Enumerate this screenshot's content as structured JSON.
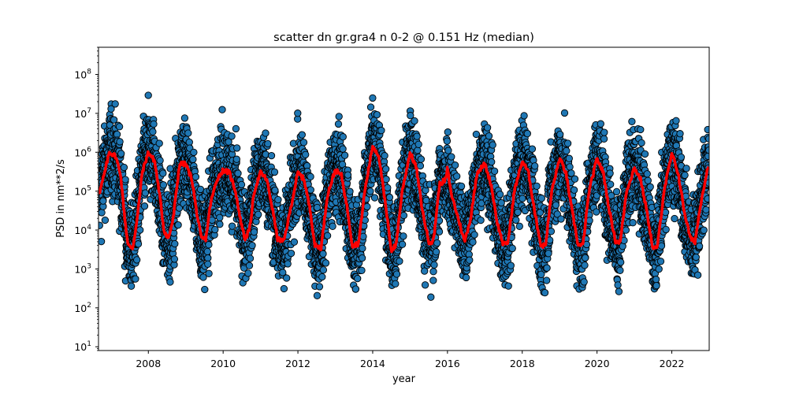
{
  "chart_data": {
    "type": "scatter",
    "title": "scatter dn gr.gra4 n 0-2 @ 0.151 Hz (median)",
    "xlabel": "year",
    "ylabel": "PSD in nm**2/s",
    "xlim": [
      "2006-09-01",
      "2023-01-01"
    ],
    "ylim": [
      8,
      500000000
    ],
    "yscale": "log",
    "grid": false,
    "x_ticks": [
      "2008",
      "2010",
      "2012",
      "2014",
      "2016",
      "2018",
      "2020",
      "2022"
    ],
    "y_ticks": [
      {
        "value": 10,
        "base": "10",
        "exp": "1"
      },
      {
        "value": 100,
        "base": "10",
        "exp": "2"
      },
      {
        "value": 1000,
        "base": "10",
        "exp": "3"
      },
      {
        "value": 10000,
        "base": "10",
        "exp": "4"
      },
      {
        "value": 100000,
        "base": "10",
        "exp": "5"
      },
      {
        "value": 1000000,
        "base": "10",
        "exp": "6"
      },
      {
        "value": 10000000,
        "base": "10",
        "exp": "7"
      },
      {
        "value": 100000000,
        "base": "10",
        "exp": "8"
      }
    ],
    "scatter_color": "#1f77b4",
    "scatter_edge_color": "#000000",
    "median_color": "#ff0000",
    "series": [
      {
        "kind": "median-line",
        "points": [
          [
            "2006-09-15",
            100000
          ],
          [
            "2006-11-01",
            300000
          ],
          [
            "2006-12-15",
            1000000
          ],
          [
            "2007-02-15",
            800000
          ],
          [
            "2007-04-01",
            300000
          ],
          [
            "2007-05-15",
            20000
          ],
          [
            "2007-06-15",
            4000
          ],
          [
            "2007-08-01",
            3500
          ],
          [
            "2007-09-15",
            20000
          ],
          [
            "2007-11-01",
            300000
          ],
          [
            "2008-01-01",
            1000000
          ],
          [
            "2008-03-01",
            600000
          ],
          [
            "2008-04-15",
            100000
          ],
          [
            "2008-06-01",
            10000
          ],
          [
            "2008-07-15",
            6000
          ],
          [
            "2008-09-01",
            20000
          ],
          [
            "2008-11-01",
            500000
          ],
          [
            "2009-01-01",
            500000
          ],
          [
            "2009-03-01",
            200000
          ],
          [
            "2009-04-15",
            30000
          ],
          [
            "2009-06-01",
            6000
          ],
          [
            "2009-07-15",
            6000
          ],
          [
            "2009-09-01",
            50000
          ],
          [
            "2009-11-01",
            200000
          ],
          [
            "2010-01-01",
            350000
          ],
          [
            "2010-03-01",
            300000
          ],
          [
            "2010-05-01",
            100000
          ],
          [
            "2010-06-15",
            20000
          ],
          [
            "2010-08-01",
            6000
          ],
          [
            "2010-09-15",
            10000
          ],
          [
            "2010-11-01",
            100000
          ],
          [
            "2011-01-01",
            300000
          ],
          [
            "2011-03-01",
            200000
          ],
          [
            "2011-05-01",
            30000
          ],
          [
            "2011-06-15",
            6000
          ],
          [
            "2011-08-15",
            5000
          ],
          [
            "2011-10-15",
            30000
          ],
          [
            "2012-01-01",
            300000
          ],
          [
            "2012-03-01",
            200000
          ],
          [
            "2012-05-01",
            30000
          ],
          [
            "2012-06-15",
            4000
          ],
          [
            "2012-08-15",
            3500
          ],
          [
            "2012-10-15",
            80000
          ],
          [
            "2013-01-01",
            350000
          ],
          [
            "2013-03-01",
            250000
          ],
          [
            "2013-05-01",
            30000
          ],
          [
            "2013-06-15",
            4000
          ],
          [
            "2013-08-15",
            4500
          ],
          [
            "2013-10-15",
            100000
          ],
          [
            "2014-01-01",
            1500000
          ],
          [
            "2014-03-01",
            800000
          ],
          [
            "2014-05-01",
            50000
          ],
          [
            "2014-07-01",
            3000
          ],
          [
            "2014-08-15",
            4000
          ],
          [
            "2014-10-15",
            100000
          ],
          [
            "2015-01-01",
            1000000
          ],
          [
            "2015-03-01",
            400000
          ],
          [
            "2015-05-01",
            30000
          ],
          [
            "2015-07-01",
            5000
          ],
          [
            "2015-08-15",
            5000
          ],
          [
            "2015-10-15",
            150000
          ],
          [
            "2015-12-15",
            200000
          ],
          [
            "2016-01-01",
            400000
          ],
          [
            "2016-02-01",
            100000
          ],
          [
            "2016-04-15",
            20000
          ],
          [
            "2016-06-15",
            5000
          ],
          [
            "2016-08-15",
            20000
          ],
          [
            "2016-10-15",
            300000
          ],
          [
            "2017-01-01",
            500000
          ],
          [
            "2017-03-01",
            150000
          ],
          [
            "2017-05-01",
            15000
          ],
          [
            "2017-07-01",
            4000
          ],
          [
            "2017-08-15",
            5000
          ],
          [
            "2017-10-15",
            100000
          ],
          [
            "2018-01-01",
            600000
          ],
          [
            "2018-03-01",
            300000
          ],
          [
            "2018-05-01",
            30000
          ],
          [
            "2018-07-01",
            4000
          ],
          [
            "2018-08-15",
            4000
          ],
          [
            "2018-10-15",
            100000
          ],
          [
            "2019-01-01",
            700000
          ],
          [
            "2019-03-01",
            300000
          ],
          [
            "2019-05-01",
            30000
          ],
          [
            "2019-07-01",
            4000
          ],
          [
            "2019-08-15",
            4000
          ],
          [
            "2019-10-15",
            100000
          ],
          [
            "2020-01-01",
            700000
          ],
          [
            "2020-03-01",
            300000
          ],
          [
            "2020-05-01",
            30000
          ],
          [
            "2020-07-01",
            5000
          ],
          [
            "2020-08-15",
            5000
          ],
          [
            "2020-10-15",
            100000
          ],
          [
            "2021-01-01",
            400000
          ],
          [
            "2021-03-01",
            200000
          ],
          [
            "2021-05-01",
            30000
          ],
          [
            "2021-07-01",
            3000
          ],
          [
            "2021-08-15",
            4000
          ],
          [
            "2021-10-15",
            100000
          ],
          [
            "2022-01-01",
            900000
          ],
          [
            "2022-03-01",
            300000
          ],
          [
            "2022-05-01",
            30000
          ],
          [
            "2022-07-01",
            6000
          ],
          [
            "2022-08-15",
            5000
          ],
          [
            "2022-10-15",
            60000
          ],
          [
            "2023-01-01",
            600000
          ]
        ]
      }
    ]
  }
}
